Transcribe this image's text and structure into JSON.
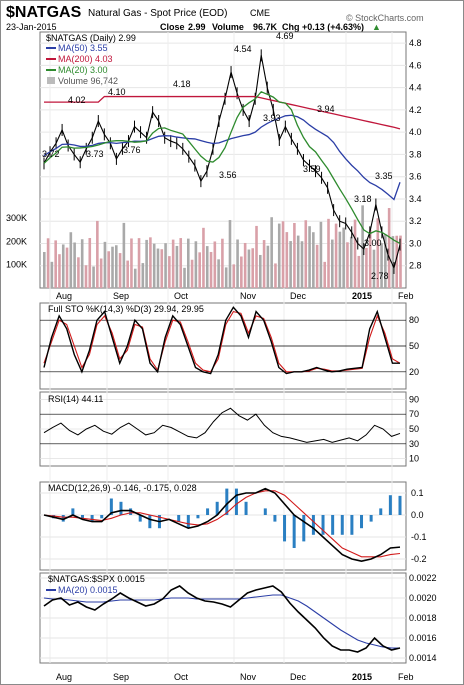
{
  "header": {
    "symbol": "$NATGAS",
    "name": "Natural Gas - Spot Price (EOD)",
    "exchange": "CME",
    "date": "23-Jan-2015",
    "close_label": "Close",
    "close": "2.99",
    "volume_label": "Volume",
    "volume": "96.7K",
    "chg_label": "Chg",
    "chg": "+0.13 (+4.63%)",
    "arrow": "▲",
    "copyright": "© StockCharts.com"
  },
  "chart_data": [
    {
      "type": "line",
      "title": "$NATGAS (Daily) 2.99",
      "ylim": [
        2.6,
        4.9
      ],
      "yticks": [
        "4.8",
        "4.6",
        "4.4",
        "4.2",
        "4.0",
        "3.8",
        "3.6",
        "3.4",
        "3.2",
        "3.0",
        "2.8"
      ],
      "x_labels": [
        "Aug",
        "Sep",
        "Oct",
        "Nov",
        "Dec",
        "2015",
        "Feb"
      ],
      "series": [
        {
          "name": "MA(50) 3.55",
          "color": "#2b3ea6"
        },
        {
          "name": "MA(200) 4.03",
          "color": "#c0163b"
        },
        {
          "name": "MA(20) 3.00",
          "color": "#2e8b2e"
        },
        {
          "name": "Volume 96,742",
          "color": "#a8a8a8"
        }
      ],
      "price_points": [
        3.72,
        3.82,
        3.9,
        4.02,
        3.88,
        3.8,
        3.73,
        3.85,
        3.95,
        4.1,
        3.98,
        3.9,
        3.76,
        3.85,
        3.92,
        4.05,
        4.0,
        3.95,
        4.18,
        4.1,
        3.95,
        3.92,
        3.9,
        3.85,
        3.78,
        3.7,
        3.56,
        3.65,
        3.85,
        4.1,
        4.3,
        4.54,
        4.35,
        4.2,
        4.1,
        4.3,
        4.69,
        4.4,
        4.2,
        3.93,
        4.05,
        3.94,
        3.85,
        3.75,
        3.7,
        3.65,
        3.59,
        3.5,
        3.3,
        3.2,
        3.18,
        3.1,
        3.0,
        2.95,
        3.1,
        3.35,
        3.1,
        2.9,
        2.78,
        2.99
      ],
      "annotations": [
        "3.72",
        "4.02",
        "3.73",
        "4.10",
        "3.76",
        "4.18",
        "3.56",
        "4.54",
        "4.69",
        "3.93",
        "3.94",
        "3.59",
        "3.18",
        "3.35",
        "3.00",
        "2.78"
      ],
      "volume_axis": [
        "300K",
        "200K",
        "100K"
      ],
      "ma_end_values": {
        "ma50": 3.55,
        "ma200": 4.03,
        "ma20": 3.0
      }
    },
    {
      "type": "line",
      "title": "Full STO %K(14,3) %D(3) 29.94, 29.95",
      "yticks": [
        "80",
        "50",
        "20"
      ],
      "ylim": [
        0,
        100
      ],
      "k_values": [
        25,
        60,
        85,
        70,
        40,
        20,
        45,
        80,
        90,
        60,
        30,
        50,
        80,
        70,
        30,
        20,
        60,
        85,
        75,
        50,
        25,
        20,
        18,
        40,
        80,
        95,
        85,
        60,
        90,
        80,
        55,
        25,
        18,
        20,
        20,
        22,
        25,
        22,
        20,
        21,
        23,
        24,
        25,
        70,
        90,
        60,
        30,
        30
      ],
      "d_values": [
        30,
        55,
        80,
        75,
        50,
        25,
        40,
        75,
        85,
        65,
        35,
        45,
        75,
        72,
        35,
        22,
        55,
        80,
        78,
        55,
        30,
        22,
        20,
        35,
        75,
        90,
        88,
        65,
        85,
        82,
        60,
        30,
        20,
        20,
        20,
        21,
        24,
        23,
        21,
        21,
        22,
        23,
        24,
        60,
        85,
        65,
        35,
        30
      ]
    },
    {
      "type": "line",
      "title": "RSI(14) 44.11",
      "yticks": [
        "90",
        "70",
        "50",
        "30",
        "10"
      ],
      "ylim": [
        0,
        100
      ],
      "values": [
        45,
        52,
        58,
        48,
        42,
        50,
        55,
        47,
        43,
        52,
        58,
        50,
        42,
        45,
        55,
        52,
        46,
        40,
        38,
        45,
        60,
        72,
        78,
        68,
        62,
        70,
        55,
        45,
        40,
        38,
        35,
        32,
        34,
        36,
        32,
        35,
        38,
        34,
        42,
        55,
        50,
        40,
        44
      ]
    },
    {
      "type": "line",
      "title": "MACD(12,26,9) -0.146, -0.175, 0.028",
      "yticks": [
        "0.1",
        "0.0",
        "-0.1",
        "-0.2"
      ],
      "ylim": [
        -0.25,
        0.15
      ],
      "macd": [
        0.0,
        -0.01,
        -0.02,
        0.0,
        -0.02,
        -0.03,
        -0.03,
        0.01,
        0.02,
        0.02,
        0.0,
        -0.02,
        -0.03,
        -0.02,
        -0.04,
        -0.06,
        -0.05,
        -0.03,
        0.0,
        0.05,
        0.09,
        0.1,
        0.1,
        0.12,
        0.1,
        0.05,
        0.0,
        -0.03,
        -0.06,
        -0.1,
        -0.14,
        -0.18,
        -0.2,
        -0.21,
        -0.2,
        -0.18,
        -0.15,
        -0.146
      ],
      "signal": [
        0.0,
        -0.005,
        -0.01,
        -0.01,
        -0.015,
        -0.02,
        -0.025,
        -0.015,
        0.0,
        0.01,
        0.01,
        0.0,
        -0.01,
        -0.02,
        -0.03,
        -0.04,
        -0.045,
        -0.04,
        -0.02,
        0.01,
        0.05,
        0.08,
        0.1,
        0.11,
        0.11,
        0.09,
        0.05,
        0.01,
        -0.03,
        -0.07,
        -0.11,
        -0.15,
        -0.17,
        -0.19,
        -0.19,
        -0.19,
        -0.18,
        -0.175
      ],
      "legend_colors": {
        "macd": "#000000",
        "signal": "#d21a1a",
        "hist": "#2a7fc2"
      }
    },
    {
      "type": "line",
      "title": "$NATGAS:$SPX 0.0015",
      "yticks": [
        "0.0022",
        "0.0020",
        "0.0018",
        "0.0016",
        "0.0014"
      ],
      "ylim": [
        0.00135,
        0.00225
      ],
      "series": [
        {
          "name": "MA(20) 0.0015",
          "color": "#2b3ea6"
        }
      ],
      "ratio": [
        0.00192,
        0.00198,
        0.002,
        0.00193,
        0.00196,
        0.00191,
        0.00188,
        0.00194,
        0.00199,
        0.00205,
        0.002,
        0.00196,
        0.00192,
        0.00194,
        0.00199,
        0.00208,
        0.00212,
        0.00205,
        0.002,
        0.00197,
        0.00196,
        0.00194,
        0.00191,
        0.00198,
        0.00205,
        0.00208,
        0.0021,
        0.00212,
        0.00206,
        0.00195,
        0.00186,
        0.00178,
        0.0017,
        0.0016,
        0.00152,
        0.00148,
        0.00148,
        0.00146,
        0.0015,
        0.0016,
        0.00152,
        0.00148,
        0.0015
      ],
      "ma20": [
        0.002,
        0.00199,
        0.00199,
        0.00198,
        0.00197,
        0.00196,
        0.00196,
        0.00196,
        0.00197,
        0.00198,
        0.00198,
        0.00198,
        0.00198,
        0.00198,
        0.00199,
        0.002,
        0.002,
        0.002,
        0.00199,
        0.00199,
        0.00199,
        0.00199,
        0.00199,
        0.00199,
        0.002,
        0.00201,
        0.00202,
        0.00203,
        0.00203,
        0.002,
        0.00197,
        0.00192,
        0.00186,
        0.0018,
        0.00174,
        0.00168,
        0.00163,
        0.00158,
        0.00155,
        0.00153,
        0.00151,
        0.0015,
        0.0015
      ]
    }
  ]
}
